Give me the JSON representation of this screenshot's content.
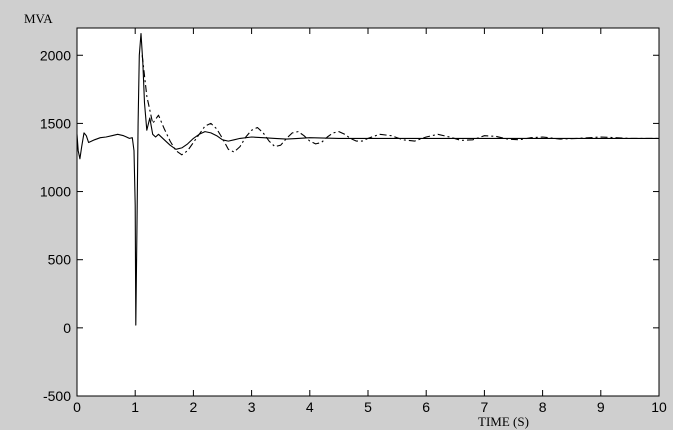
{
  "chart_data": {
    "type": "line",
    "title": "",
    "xlabel": "TIME (S)",
    "ylabel": "MVA",
    "xlim": [
      0,
      10
    ],
    "ylim": [
      -500,
      2200
    ],
    "x_ticks": [
      0,
      1,
      2,
      3,
      4,
      5,
      6,
      7,
      8,
      9,
      10
    ],
    "y_ticks": [
      -500,
      0,
      500,
      1000,
      1500,
      2000
    ],
    "grid": false,
    "colors": {
      "background": "#cfcfcf",
      "plot_area": "#ffffff",
      "line": "#000000"
    },
    "series": [
      {
        "style": "solid",
        "x": [
          0,
          0.02,
          0.05,
          0.08,
          0.12,
          0.16,
          0.2,
          0.3,
          0.4,
          0.5,
          0.6,
          0.7,
          0.8,
          0.85,
          0.9,
          0.95,
          0.98,
          1.0,
          1.01,
          1.03,
          1.05,
          1.07,
          1.1,
          1.13,
          1.16,
          1.2,
          1.25,
          1.3,
          1.35,
          1.4,
          1.5,
          1.6,
          1.7,
          1.8,
          1.9,
          2.0,
          2.1,
          2.2,
          2.3,
          2.4,
          2.5,
          2.6,
          2.7,
          2.8,
          3.0,
          3.2,
          3.4,
          3.6,
          3.8,
          4.0,
          4.5,
          5.0,
          6.0,
          7.0,
          8.0,
          9.0,
          10.0
        ],
        "y": [
          1420,
          1300,
          1240,
          1330,
          1430,
          1410,
          1360,
          1380,
          1395,
          1400,
          1410,
          1420,
          1410,
          1400,
          1390,
          1395,
          1300,
          900,
          20,
          700,
          1500,
          2000,
          2160,
          1950,
          1650,
          1450,
          1540,
          1420,
          1400,
          1420,
          1380,
          1340,
          1310,
          1320,
          1350,
          1390,
          1420,
          1440,
          1430,
          1410,
          1380,
          1370,
          1380,
          1390,
          1400,
          1395,
          1390,
          1385,
          1390,
          1395,
          1390,
          1390,
          1390,
          1390,
          1390,
          1390,
          1390
        ]
      },
      {
        "style": "dashed",
        "x": [
          1.12,
          1.2,
          1.3,
          1.4,
          1.5,
          1.6,
          1.7,
          1.8,
          1.9,
          2.0,
          2.1,
          2.2,
          2.3,
          2.4,
          2.5,
          2.6,
          2.7,
          2.8,
          2.9,
          3.0,
          3.1,
          3.2,
          3.3,
          3.4,
          3.5,
          3.6,
          3.7,
          3.8,
          3.9,
          4.0,
          4.1,
          4.2,
          4.3,
          4.4,
          4.5,
          4.6,
          4.7,
          4.8,
          4.9,
          5.0,
          5.2,
          5.4,
          5.6,
          5.8,
          6.0,
          6.2,
          6.4,
          6.6,
          6.8,
          7.0,
          7.2,
          7.4,
          7.6,
          7.8,
          8.0,
          8.3,
          8.6,
          9.0,
          9.5,
          10.0
        ],
        "y": [
          2000,
          1700,
          1500,
          1560,
          1460,
          1370,
          1300,
          1270,
          1300,
          1360,
          1420,
          1480,
          1500,
          1460,
          1390,
          1310,
          1290,
          1330,
          1400,
          1450,
          1470,
          1430,
          1370,
          1330,
          1340,
          1390,
          1430,
          1440,
          1410,
          1370,
          1350,
          1360,
          1400,
          1430,
          1440,
          1420,
          1390,
          1370,
          1370,
          1390,
          1420,
          1410,
          1380,
          1370,
          1400,
          1420,
          1400,
          1375,
          1380,
          1410,
          1405,
          1385,
          1380,
          1395,
          1400,
          1385,
          1390,
          1400,
          1390,
          1390
        ]
      }
    ]
  }
}
